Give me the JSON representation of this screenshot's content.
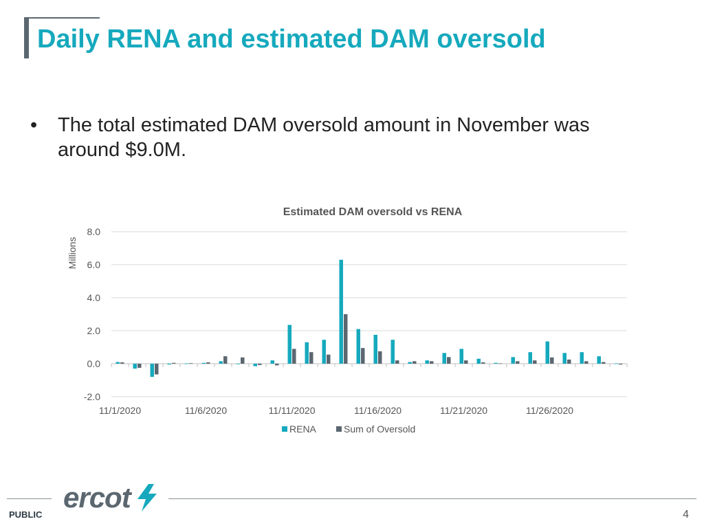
{
  "slide": {
    "title": "Daily RENA and estimated DAM oversold",
    "bullet": "The total estimated DAM oversold amount in November was around $9.0M.",
    "classification": "PUBLIC",
    "page_number": "4",
    "logo_text": "ercot"
  },
  "colors": {
    "rena": "#16a9bd",
    "oversold": "#5b6770",
    "title": "#16a9bd"
  },
  "chart_data": {
    "type": "bar",
    "title": "Estimated DAM oversold vs RENA",
    "ylabel": "Millions",
    "xlabel": "",
    "ylim": [
      -2.0,
      8.0
    ],
    "yticks": [
      "-2.0",
      "0.0",
      "2.0",
      "4.0",
      "6.0",
      "8.0"
    ],
    "x_tick_labels": [
      {
        "index": 0,
        "label": "11/1/2020"
      },
      {
        "index": 5,
        "label": "11/6/2020"
      },
      {
        "index": 10,
        "label": "11/11/2020"
      },
      {
        "index": 15,
        "label": "11/16/2020"
      },
      {
        "index": 20,
        "label": "11/21/2020"
      },
      {
        "index": 25,
        "label": "11/26/2020"
      }
    ],
    "legend_position": "bottom",
    "grid": true,
    "categories": [
      "11/1/2020",
      "11/2/2020",
      "11/3/2020",
      "11/4/2020",
      "11/5/2020",
      "11/6/2020",
      "11/7/2020",
      "11/8/2020",
      "11/9/2020",
      "11/10/2020",
      "11/11/2020",
      "11/12/2020",
      "11/13/2020",
      "11/14/2020",
      "11/15/2020",
      "11/16/2020",
      "11/17/2020",
      "11/18/2020",
      "11/19/2020",
      "11/20/2020",
      "11/21/2020",
      "11/22/2020",
      "11/23/2020",
      "11/24/2020",
      "11/25/2020",
      "11/26/2020",
      "11/27/2020",
      "11/28/2020",
      "11/29/2020",
      "11/30/2020"
    ],
    "series": [
      {
        "name": "RENA",
        "values": [
          0.1,
          -0.3,
          -0.8,
          -0.05,
          0.02,
          0.05,
          0.15,
          0.0,
          -0.15,
          0.2,
          2.35,
          1.3,
          1.45,
          6.3,
          2.1,
          1.75,
          1.45,
          0.1,
          0.2,
          0.65,
          0.9,
          0.3,
          0.05,
          0.4,
          0.7,
          1.35,
          0.65,
          0.7,
          0.45,
          0.02
        ]
      },
      {
        "name": "Sum of Oversold",
        "values": [
          0.08,
          -0.25,
          -0.65,
          0.05,
          0.03,
          0.08,
          0.45,
          0.38,
          -0.08,
          -0.1,
          0.9,
          0.7,
          0.55,
          3.0,
          0.95,
          0.75,
          0.2,
          0.15,
          0.15,
          0.4,
          0.2,
          0.08,
          0.02,
          0.15,
          0.2,
          0.38,
          0.25,
          0.15,
          0.1,
          -0.05
        ]
      }
    ]
  }
}
